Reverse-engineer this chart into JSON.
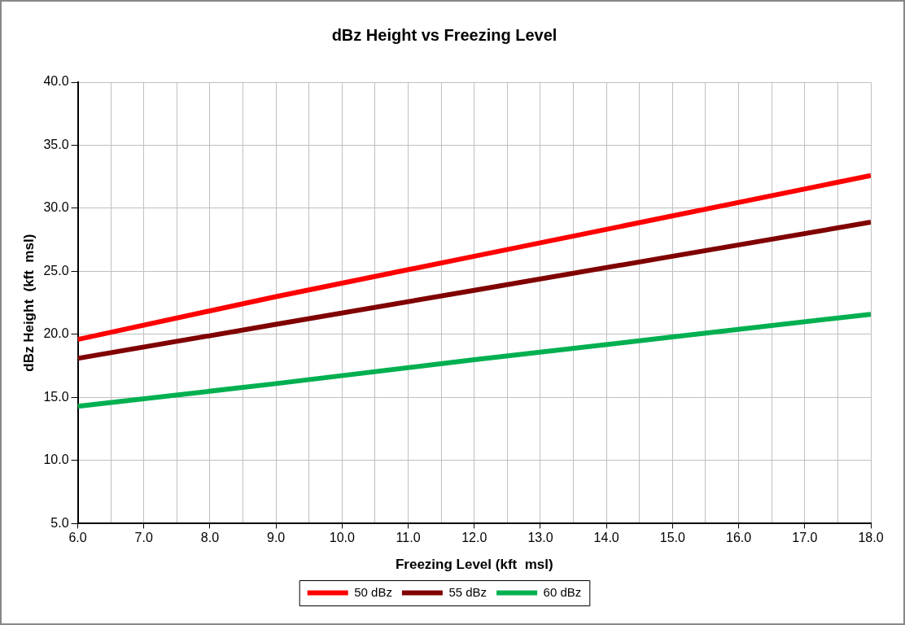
{
  "chart_data": {
    "type": "line",
    "title": "dBz Height vs Freezing Level",
    "xlabel": "Freezing Level (kft  msl)",
    "ylabel": "dBz Height  (kft  msl)",
    "x": [
      6,
      9,
      12,
      15,
      18
    ],
    "series": [
      {
        "name": "50 dBz",
        "color": "#ff0000",
        "values": [
          19.6,
          23.0,
          26.2,
          29.4,
          32.6
        ]
      },
      {
        "name": "55 dBz",
        "color": "#800000",
        "values": [
          18.1,
          20.8,
          23.5,
          26.2,
          28.9
        ]
      },
      {
        "name": "60 dBz",
        "color": "#00b050",
        "values": [
          14.3,
          16.1,
          18.0,
          19.8,
          21.6
        ]
      }
    ],
    "xlim": [
      6,
      18
    ],
    "xticks": [
      {
        "value": 6,
        "label": "6.0"
      },
      {
        "value": 6.5,
        "label": null
      },
      {
        "value": 7,
        "label": "7.0"
      },
      {
        "value": 7.5,
        "label": null
      },
      {
        "value": 8,
        "label": "8.0"
      },
      {
        "value": 8.5,
        "label": null
      },
      {
        "value": 9,
        "label": "9.0"
      },
      {
        "value": 9.5,
        "label": null
      },
      {
        "value": 10,
        "label": "10.0"
      },
      {
        "value": 10.5,
        "label": null
      },
      {
        "value": 11,
        "label": "11.0"
      },
      {
        "value": 11.5,
        "label": null
      },
      {
        "value": 12,
        "label": "12.0"
      },
      {
        "value": 12.5,
        "label": null
      },
      {
        "value": 13,
        "label": "13.0"
      },
      {
        "value": 13.5,
        "label": null
      },
      {
        "value": 14,
        "label": "14.0"
      },
      {
        "value": 14.5,
        "label": null
      },
      {
        "value": 15,
        "label": "15.0"
      },
      {
        "value": 15.5,
        "label": null
      },
      {
        "value": 16,
        "label": "16.0"
      },
      {
        "value": 16.5,
        "label": null
      },
      {
        "value": 17,
        "label": "17.0"
      },
      {
        "value": 17.5,
        "label": null
      },
      {
        "value": 18,
        "label": "18.0"
      }
    ],
    "ylim": [
      5,
      40
    ],
    "yticks": [
      {
        "value": 5,
        "label": "5.0"
      },
      {
        "value": 10,
        "label": "10.0"
      },
      {
        "value": 15,
        "label": "15.0"
      },
      {
        "value": 20,
        "label": "20.0"
      },
      {
        "value": 25,
        "label": "25.0"
      },
      {
        "value": 30,
        "label": "30.0"
      },
      {
        "value": 35,
        "label": "35.0"
      },
      {
        "value": 40,
        "label": "40.0"
      }
    ],
    "grid": true,
    "legend": "bottom",
    "marker": "none",
    "line_style": "solid"
  }
}
